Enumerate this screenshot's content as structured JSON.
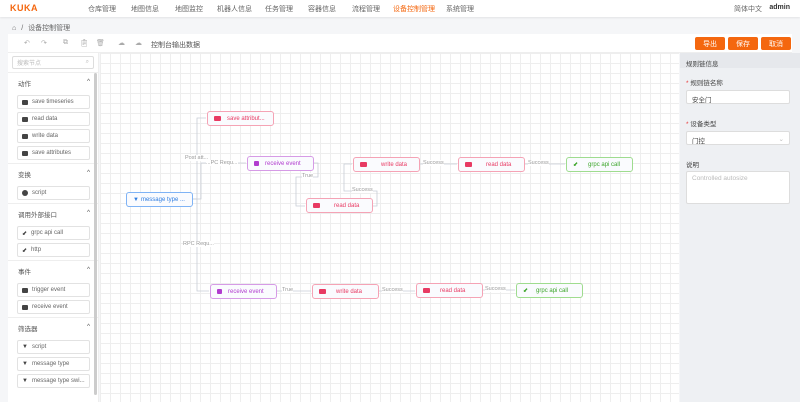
{
  "nav": {
    "logo": "KUKA",
    "items": [
      "仓库管理",
      "地图信息",
      "地图监控",
      "机器人信息",
      "任务管理",
      "容器信息",
      "流程管理",
      "设备控制管理",
      "系统管理"
    ],
    "active_index": 7,
    "language": "简体中文",
    "user": "admin"
  },
  "breadcrumb": {
    "current": "设备控制管理"
  },
  "toolbar": {
    "title": "控制台输出数据",
    "export": "导出",
    "save": "保存",
    "cancel": "取消"
  },
  "palette": {
    "search_placeholder": "搜索节点",
    "sections": [
      {
        "title": "动作",
        "items": [
          "save timeseries",
          "read data",
          "write data",
          "save attributes"
        ]
      },
      {
        "title": "变换",
        "items": [
          "script"
        ]
      },
      {
        "title": "调用外部接口",
        "items": [
          "grpc api call",
          "http"
        ]
      },
      {
        "title": "事件",
        "items": [
          "trigger event",
          "receive event"
        ]
      },
      {
        "title": "筛选器",
        "items": [
          "script",
          "message type",
          "message type swi..."
        ]
      }
    ]
  },
  "nodes": {
    "save_attr": "save attribut...",
    "recv1": "receive event",
    "msgtype": "message type ...",
    "write1": "write data",
    "read_mid": "read data",
    "read1": "read data",
    "grpc1": "grpc api call",
    "recv2": "receive event",
    "write2": "write data",
    "read2": "read data",
    "grpc2": "grpc api call"
  },
  "edges": {
    "post": "Post att...",
    "rpc1": "...PC Requ...",
    "rpc2": "RPC Requ...",
    "true": "True",
    "success": "Success"
  },
  "panel": {
    "title": "规则链信息",
    "name_label": "规则链名称",
    "name_value": "安全门",
    "type_label": "设备类型",
    "type_value": "门控",
    "desc_label": "说明",
    "desc_placeholder": "Controlled autosize"
  },
  "colors": {
    "accent": "#f4670f",
    "action": "#e83a63",
    "event": "#b13ccf",
    "filter": "#2f7de1",
    "external": "#3ca52a"
  }
}
